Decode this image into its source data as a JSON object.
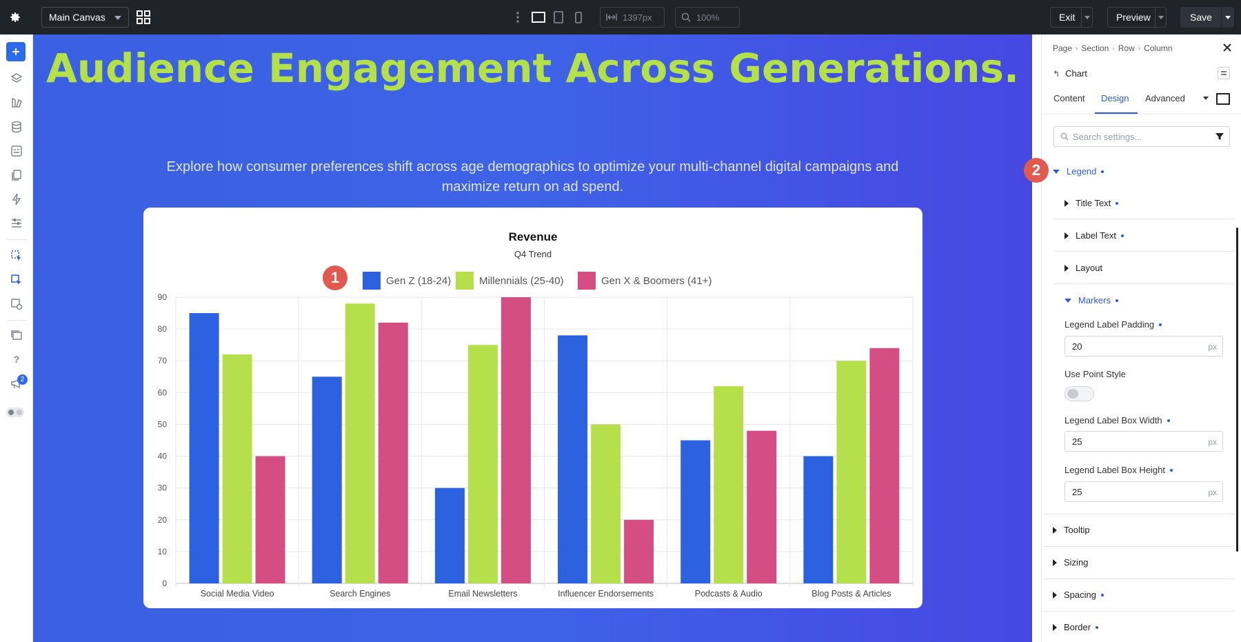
{
  "topbar": {
    "canvas_select": "Main Canvas",
    "width_readout": "1397px",
    "zoom_readout": "100%",
    "exit_label": "Exit",
    "preview_label": "Preview",
    "save_label": "Save"
  },
  "leftbar": {
    "notification_count": "2"
  },
  "hero": {
    "title": "Audience Engagement Across Generations.",
    "subtitle": "Explore how consumer preferences shift across age demographics to optimize your multi-channel digital campaigns and maximize return on ad spend."
  },
  "markers": {
    "one": "1",
    "two": "2"
  },
  "chart_data": {
    "type": "bar",
    "title": "Revenue",
    "subtitle": "Q4 Trend",
    "categories": [
      "Social Media Video",
      "Search Engines",
      "Email Newsletters",
      "Influencer Endorsements",
      "Podcasts & Audio",
      "Blog Posts & Articles"
    ],
    "series": [
      {
        "name": "Gen Z (18-24)",
        "color": "#2c62e0",
        "values": [
          85,
          65,
          30,
          78,
          45,
          40
        ]
      },
      {
        "name": "Millennials (25-40)",
        "color": "#b6e04b",
        "values": [
          72,
          88,
          75,
          50,
          62,
          70
        ]
      },
      {
        "name": "Gen X & Boomers (41+)",
        "color": "#d44e84",
        "values": [
          40,
          82,
          90,
          20,
          48,
          74
        ]
      }
    ],
    "ylim": [
      0,
      90
    ],
    "yticks": [
      "0",
      "10",
      "20",
      "30",
      "40",
      "50",
      "60",
      "70",
      "80",
      "90"
    ],
    "grid": true,
    "legend": "top"
  },
  "panel": {
    "breadcrumb": [
      "Page",
      "Section",
      "Row",
      "Column"
    ],
    "module_title": "Chart",
    "tabs": [
      "Content",
      "Design",
      "Advanced"
    ],
    "active_tab": "Design",
    "search_placeholder": "Search settings...",
    "legend_label": "Legend",
    "title_text": "Title Text",
    "label_text": "Label Text",
    "layout": "Layout",
    "markers_label": "Markers",
    "padding_label": "Legend Label Padding",
    "padding_value": "20",
    "point_style_label": "Use Point Style",
    "box_width_label": "Legend Label Box Width",
    "box_width_value": "25",
    "box_height_label": "Legend Label Box Height",
    "box_height_value": "25",
    "unit": "px",
    "tooltip": "Tooltip",
    "sizing": "Sizing",
    "spacing": "Spacing",
    "border": "Border"
  }
}
